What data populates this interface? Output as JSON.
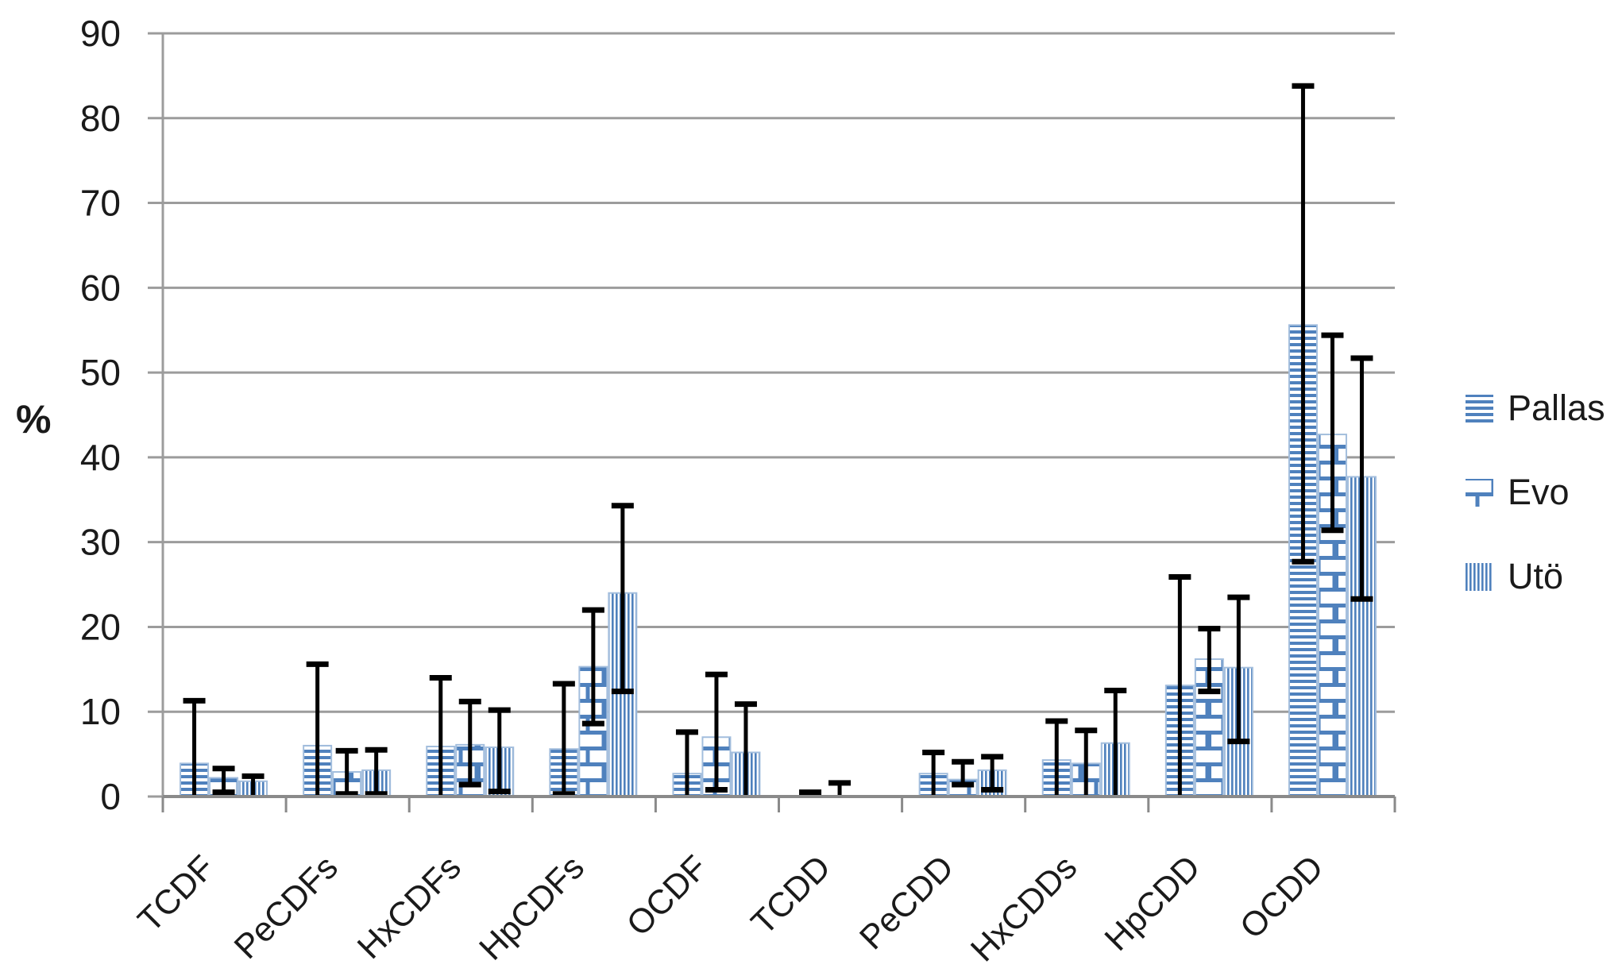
{
  "chart_data": {
    "type": "bar",
    "title": "",
    "ylabel": "%",
    "xlabel": "",
    "ylim": [
      0,
      90
    ],
    "ytick_step": 10,
    "grid": true,
    "legend_position": "right",
    "categories": [
      "TCDF",
      "PeCDFs",
      "HxCDFs",
      "HpCDFs",
      "OCDF",
      "TCDD",
      "PeCDD",
      "HxCDDs",
      "HpCDD",
      "OCDD"
    ],
    "series": [
      {
        "name": "Pallas",
        "pattern": "horizontal-stripes",
        "values": [
          3.9,
          6.0,
          5.9,
          5.6,
          2.7,
          0,
          2.7,
          4.3,
          13.1,
          55.6
        ],
        "err_high": [
          11.3,
          15.6,
          14.0,
          13.3,
          7.6,
          0.5,
          5.2,
          8.9,
          25.9,
          83.8
        ],
        "err_low": [
          null,
          null,
          null,
          0.3,
          null,
          null,
          null,
          null,
          null,
          27.7
        ]
      },
      {
        "name": "Evo",
        "pattern": "brick",
        "values": [
          2.2,
          2.9,
          6.1,
          15.3,
          7.0,
          0,
          2.0,
          3.9,
          16.2,
          42.7
        ],
        "err_high": [
          3.3,
          5.4,
          11.2,
          22.0,
          14.4,
          1.6,
          4.1,
          7.8,
          19.8,
          54.4
        ],
        "err_low": [
          0.5,
          0.3,
          1.4,
          8.6,
          0.8,
          null,
          1.4,
          null,
          12.4,
          31.4
        ]
      },
      {
        "name": "Utö",
        "pattern": "vertical-stripes",
        "values": [
          1.8,
          3.1,
          5.8,
          24.0,
          5.2,
          0,
          3.1,
          6.3,
          15.2,
          37.7
        ],
        "err_high": [
          2.4,
          5.5,
          10.2,
          34.3,
          10.9,
          null,
          4.7,
          12.5,
          23.5,
          51.7
        ],
        "err_low": [
          null,
          0.3,
          0.6,
          12.4,
          null,
          null,
          0.8,
          null,
          6.5,
          23.3
        ]
      }
    ],
    "colors": {
      "bar_blue": "#4f81bd",
      "bar_edge": "#a3bedd",
      "gridline": "#9c9c9c",
      "axis": "#8a8a8a",
      "error_bar": "#000000",
      "text": "#1a1a1a"
    }
  },
  "y_axis": {
    "label": "%",
    "ticks": [
      "0",
      "10",
      "20",
      "30",
      "40",
      "50",
      "60",
      "70",
      "80",
      "90"
    ]
  }
}
